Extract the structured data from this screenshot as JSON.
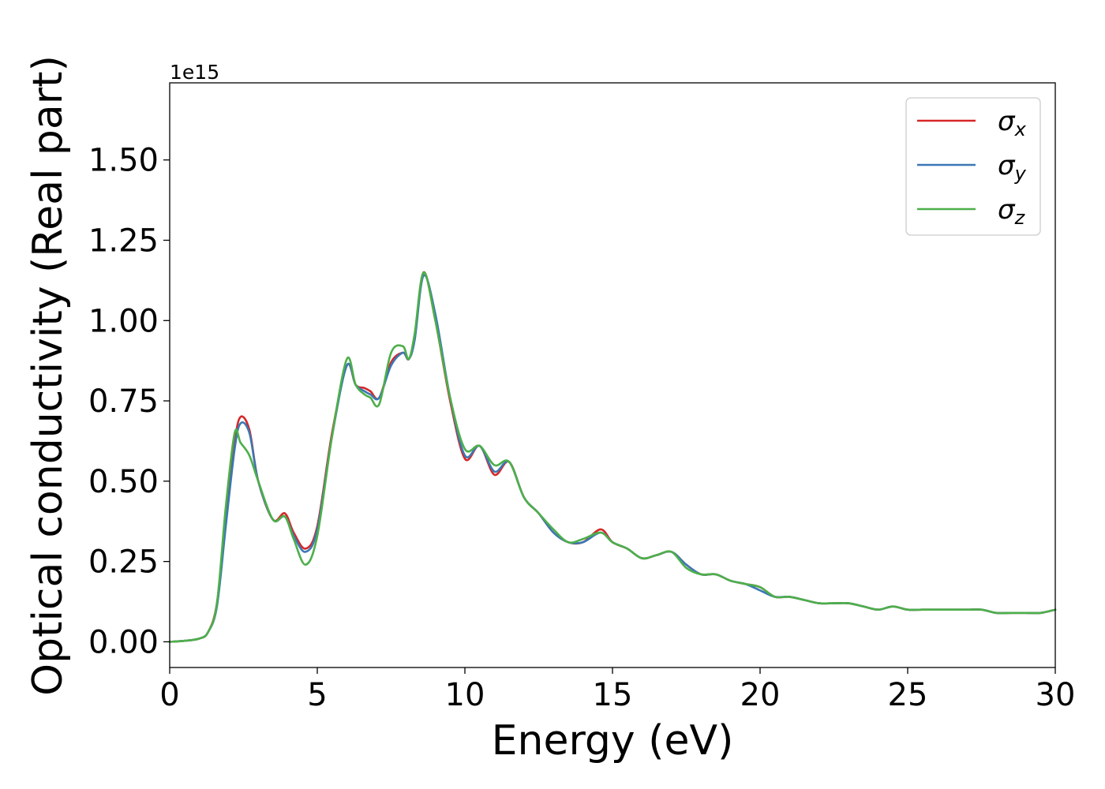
{
  "chart_data": {
    "type": "line",
    "xlabel": "Energy (eV)",
    "ylabel": "Optical conductivity (Real part)",
    "y_offset_label": "1e15",
    "xlim": [
      0,
      30
    ],
    "ylim": [
      -0.08,
      1.74
    ],
    "x_ticks": [
      0,
      5,
      10,
      15,
      20,
      25,
      30
    ],
    "x_tick_labels": [
      "0",
      "5",
      "10",
      "15",
      "20",
      "25",
      "30"
    ],
    "y_ticks": [
      0.0,
      0.25,
      0.5,
      0.75,
      1.0,
      1.25,
      1.5
    ],
    "y_tick_labels": [
      "0.00",
      "0.25",
      "0.50",
      "0.75",
      "1.00",
      "1.25",
      "1.50"
    ],
    "grid": false,
    "legend_position": "top-right",
    "series": [
      {
        "name": "σx",
        "legend_symbol": "σ",
        "legend_sub": "x",
        "color": "#d62728",
        "x": [
          0,
          0.5,
          1.0,
          1.3,
          1.6,
          1.9,
          2.2,
          2.4,
          2.7,
          3.0,
          3.5,
          3.9,
          4.2,
          4.6,
          5.0,
          5.5,
          6.0,
          6.3,
          6.6,
          6.8,
          7.1,
          7.5,
          7.9,
          8.1,
          8.3,
          8.6,
          9.0,
          9.5,
          10.0,
          10.5,
          11.0,
          11.5,
          12.0,
          12.5,
          13.0,
          13.5,
          14.0,
          14.6,
          15.0,
          15.5,
          16.0,
          16.5,
          17.0,
          17.5,
          18.0,
          18.5,
          19.0,
          19.5,
          20.0,
          20.5,
          21.0,
          21.5,
          22.0,
          22.5,
          23.0,
          23.5,
          24.0,
          24.5,
          25.0,
          25.5,
          26.0,
          26.5,
          27.0,
          27.5,
          28.0,
          28.5,
          29.0,
          29.5,
          30.0
        ],
        "y": [
          0.0,
          0.003,
          0.01,
          0.03,
          0.12,
          0.38,
          0.62,
          0.7,
          0.66,
          0.5,
          0.38,
          0.4,
          0.34,
          0.29,
          0.36,
          0.65,
          0.86,
          0.8,
          0.79,
          0.78,
          0.76,
          0.87,
          0.9,
          0.88,
          0.95,
          1.15,
          1.0,
          0.75,
          0.57,
          0.61,
          0.52,
          0.56,
          0.45,
          0.4,
          0.34,
          0.31,
          0.31,
          0.35,
          0.31,
          0.29,
          0.26,
          0.27,
          0.28,
          0.24,
          0.21,
          0.21,
          0.19,
          0.18,
          0.17,
          0.14,
          0.14,
          0.13,
          0.12,
          0.12,
          0.12,
          0.11,
          0.1,
          0.11,
          0.1,
          0.1,
          0.1,
          0.1,
          0.1,
          0.1,
          0.09,
          0.09,
          0.09,
          0.09,
          0.1
        ]
      },
      {
        "name": "σy",
        "legend_symbol": "σ",
        "legend_sub": "y",
        "color": "#3a78b5",
        "x": [
          0,
          0.5,
          1.0,
          1.3,
          1.6,
          1.9,
          2.2,
          2.4,
          2.7,
          3.0,
          3.5,
          3.9,
          4.2,
          4.6,
          5.0,
          5.5,
          6.0,
          6.3,
          6.6,
          6.8,
          7.1,
          7.5,
          7.9,
          8.1,
          8.3,
          8.6,
          9.0,
          9.5,
          10.0,
          10.5,
          11.0,
          11.5,
          12.0,
          12.5,
          13.0,
          13.5,
          14.0,
          14.6,
          15.0,
          15.5,
          16.0,
          16.5,
          17.0,
          17.5,
          18.0,
          18.5,
          19.0,
          19.5,
          20.0,
          20.5,
          21.0,
          21.5,
          22.0,
          22.5,
          23.0,
          23.5,
          24.0,
          24.5,
          25.0,
          25.5,
          26.0,
          26.5,
          27.0,
          27.5,
          28.0,
          28.5,
          29.0,
          29.5,
          30.0
        ],
        "y": [
          0.0,
          0.003,
          0.01,
          0.03,
          0.11,
          0.36,
          0.6,
          0.68,
          0.65,
          0.5,
          0.38,
          0.39,
          0.33,
          0.28,
          0.35,
          0.64,
          0.86,
          0.8,
          0.78,
          0.77,
          0.76,
          0.86,
          0.9,
          0.88,
          0.94,
          1.14,
          1.02,
          0.76,
          0.58,
          0.61,
          0.53,
          0.56,
          0.45,
          0.4,
          0.34,
          0.31,
          0.31,
          0.34,
          0.31,
          0.29,
          0.26,
          0.27,
          0.28,
          0.24,
          0.21,
          0.21,
          0.19,
          0.18,
          0.16,
          0.14,
          0.14,
          0.13,
          0.12,
          0.12,
          0.12,
          0.11,
          0.1,
          0.11,
          0.1,
          0.1,
          0.1,
          0.1,
          0.1,
          0.1,
          0.09,
          0.09,
          0.09,
          0.09,
          0.1
        ]
      },
      {
        "name": "σz",
        "legend_symbol": "σ",
        "legend_sub": "z",
        "color": "#4daf4a",
        "x": [
          0,
          0.5,
          1.0,
          1.3,
          1.6,
          1.9,
          2.2,
          2.4,
          2.7,
          3.0,
          3.5,
          3.9,
          4.2,
          4.6,
          5.0,
          5.5,
          6.0,
          6.3,
          6.6,
          6.8,
          7.1,
          7.5,
          7.9,
          8.1,
          8.3,
          8.6,
          9.0,
          9.5,
          10.0,
          10.5,
          11.0,
          11.5,
          12.0,
          12.5,
          13.0,
          13.5,
          14.0,
          14.6,
          15.0,
          15.5,
          16.0,
          16.5,
          17.0,
          17.5,
          18.0,
          18.5,
          19.0,
          19.5,
          20.0,
          20.5,
          21.0,
          21.5,
          22.0,
          22.5,
          23.0,
          23.5,
          24.0,
          24.5,
          25.0,
          25.5,
          26.0,
          26.5,
          27.0,
          27.5,
          28.0,
          28.5,
          29.0,
          29.5,
          30.0
        ],
        "y": [
          0.0,
          0.003,
          0.01,
          0.03,
          0.12,
          0.42,
          0.65,
          0.62,
          0.58,
          0.5,
          0.38,
          0.39,
          0.32,
          0.24,
          0.33,
          0.64,
          0.88,
          0.8,
          0.77,
          0.76,
          0.74,
          0.9,
          0.92,
          0.88,
          0.96,
          1.15,
          1.0,
          0.76,
          0.6,
          0.61,
          0.55,
          0.56,
          0.45,
          0.4,
          0.35,
          0.31,
          0.32,
          0.34,
          0.31,
          0.29,
          0.26,
          0.27,
          0.28,
          0.23,
          0.21,
          0.21,
          0.19,
          0.18,
          0.17,
          0.14,
          0.14,
          0.13,
          0.12,
          0.12,
          0.12,
          0.11,
          0.1,
          0.11,
          0.1,
          0.1,
          0.1,
          0.1,
          0.1,
          0.1,
          0.09,
          0.09,
          0.09,
          0.09,
          0.1
        ]
      }
    ]
  }
}
